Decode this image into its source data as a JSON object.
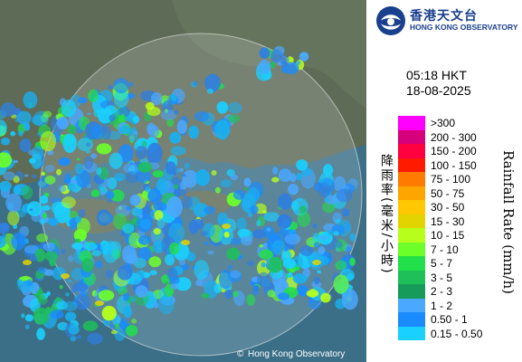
{
  "header": {
    "logo_zh": "香港天文台",
    "logo_en": "HONG KONG OBSERVATORY"
  },
  "timestamp": {
    "time": "05:18 HKT",
    "date": "18-08-2025"
  },
  "legend": {
    "title_zh": "降雨率(毫米/小時)",
    "title_en": "Rainfall Rate (mm/h)",
    "items": [
      {
        "label": ">300",
        "color": "#ff00ff"
      },
      {
        "label": "200 - 300",
        "color": "#d6007a"
      },
      {
        "label": "150 - 200",
        "color": "#ff0040"
      },
      {
        "label": "100 - 150",
        "color": "#ff1a00"
      },
      {
        "label": "75 - 100",
        "color": "#ff7a00"
      },
      {
        "label": "50 - 75",
        "color": "#ffa500"
      },
      {
        "label": "30 - 50",
        "color": "#ffc800"
      },
      {
        "label": "15 - 30",
        "color": "#e3d400"
      },
      {
        "label": "10 - 15",
        "color": "#b7ff1a"
      },
      {
        "label": "7 - 10",
        "color": "#6cff2a"
      },
      {
        "label": "5 - 7",
        "color": "#22e04a"
      },
      {
        "label": "3 - 5",
        "color": "#1fbf5a"
      },
      {
        "label": "2 - 3",
        "color": "#169b5a"
      },
      {
        "label": "1 - 2",
        "color": "#4aa8ff"
      },
      {
        "label": "0.50 - 1",
        "color": "#1a8cff"
      },
      {
        "label": "0.15 - 0.50",
        "color": "#1ad0ff"
      }
    ]
  },
  "map": {
    "credit": "Hong Kong Observatory",
    "copyright_symbol": "©"
  }
}
